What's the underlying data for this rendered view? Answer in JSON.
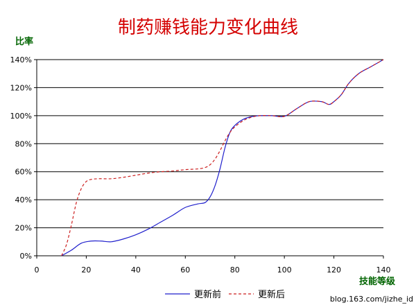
{
  "chart_data": {
    "type": "line",
    "title": "制药赚钱能力变化曲线",
    "ylabel": "比率",
    "xlabel": "技能等级",
    "xlim": [
      0,
      140
    ],
    "ylim": [
      0,
      140
    ],
    "x_ticks": [
      "0",
      "20",
      "40",
      "60",
      "80",
      "100",
      "120",
      "140"
    ],
    "y_ticks": [
      "0%",
      "20%",
      "40%",
      "60%",
      "80%",
      "100%",
      "120%",
      "140%"
    ],
    "grid": "horizontal",
    "legend_position": "bottom",
    "series": [
      {
        "name": "更新前",
        "color": "#1f1fcc",
        "style": "solid",
        "x": [
          10,
          14,
          18,
          22,
          26,
          30,
          35,
          40,
          45,
          50,
          55,
          60,
          65,
          68,
          70,
          72,
          74,
          76,
          78,
          80,
          83,
          86,
          90,
          95,
          100,
          105,
          110,
          115,
          118,
          120,
          123,
          126,
          130,
          135,
          140
        ],
        "y": [
          0,
          4,
          9,
          10.5,
          10.5,
          10,
          12,
          15,
          19,
          24,
          29,
          34.5,
          37,
          38,
          42,
          50,
          62,
          77,
          88,
          93,
          97,
          99,
          100,
          100,
          99.5,
          105,
          110,
          110,
          108,
          110,
          115,
          123,
          130,
          135,
          140
        ]
      },
      {
        "name": "更新后",
        "color": "#cc1f1f",
        "style": "dashed",
        "x": [
          10,
          12,
          14,
          16,
          18,
          20,
          22,
          25,
          30,
          35,
          40,
          45,
          50,
          55,
          60,
          65,
          68,
          70,
          72,
          74,
          76,
          78,
          80,
          83,
          86,
          90,
          95,
          100,
          105,
          110,
          115,
          118,
          120,
          123,
          126,
          130,
          135,
          140
        ],
        "y": [
          0,
          8,
          22,
          38,
          48,
          53,
          54.5,
          55,
          55,
          56,
          57.5,
          59,
          60,
          60.5,
          61.5,
          62,
          63,
          65,
          69,
          75,
          82,
          88,
          92,
          96,
          98.5,
          100,
          100,
          99.5,
          105,
          110,
          110,
          108,
          110,
          115,
          123,
          130,
          135,
          140
        ]
      }
    ]
  },
  "watermark": "blog.163.com/jizhe_id"
}
